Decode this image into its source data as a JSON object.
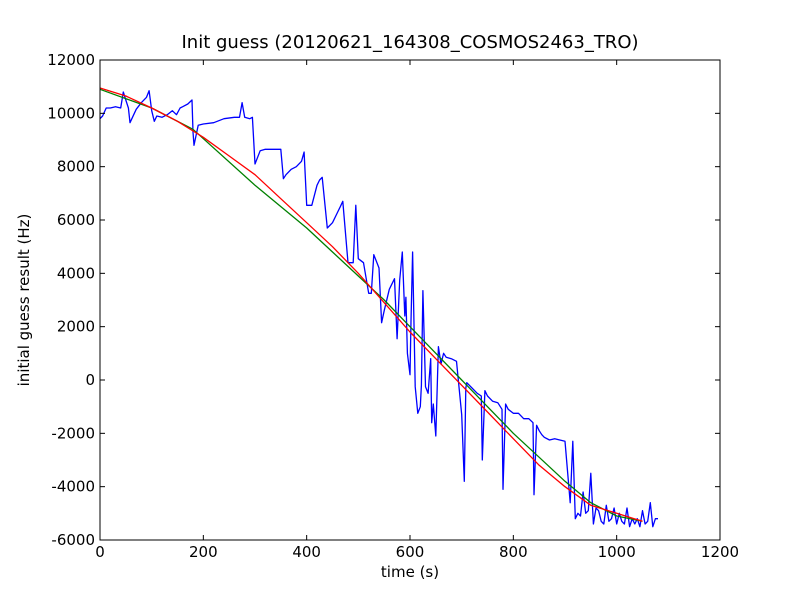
{
  "chart_data": {
    "type": "line",
    "title": "Init guess (20120621_164308_COSMOS2463_TRO)",
    "xlabel": "time (s)",
    "ylabel": "initial guess result (Hz)",
    "xlim": [
      0,
      1200
    ],
    "ylim": [
      -6000,
      12000
    ],
    "xticks": [
      0,
      200,
      400,
      600,
      800,
      1000,
      1200
    ],
    "yticks": [
      -6000,
      -4000,
      -2000,
      0,
      2000,
      4000,
      6000,
      8000,
      10000,
      12000
    ],
    "grid": false,
    "legend": "none",
    "series": [
      {
        "color": "#0000ff",
        "x": [
          0,
          5,
          12,
          20,
          30,
          40,
          45,
          50,
          55,
          58,
          70,
          80,
          90,
          95,
          100,
          105,
          110,
          120,
          130,
          140,
          148,
          155,
          160,
          170,
          178,
          180,
          182,
          190,
          200,
          220,
          240,
          260,
          270,
          275,
          280,
          290,
          295,
          300,
          310,
          320,
          330,
          340,
          350,
          355,
          360,
          370,
          380,
          390,
          395,
          400,
          410,
          420,
          425,
          430,
          440,
          450,
          460,
          465,
          470,
          480,
          490,
          495,
          500,
          510,
          520,
          525,
          530,
          540,
          545,
          550,
          560,
          570,
          575,
          580,
          585,
          590,
          592,
          595,
          600,
          602,
          605,
          610,
          615,
          620,
          622,
          625,
          630,
          635,
          640,
          642,
          645,
          650,
          655,
          660,
          665,
          670,
          680,
          690,
          700,
          705,
          708,
          710,
          720,
          730,
          738,
          740,
          745,
          750,
          760,
          770,
          778,
          780,
          785,
          790,
          800,
          810,
          820,
          830,
          838,
          840,
          845,
          850,
          855,
          860,
          870,
          880,
          890,
          900,
          910,
          915,
          920,
          925,
          930,
          935,
          940,
          945,
          950,
          955,
          960,
          965,
          970,
          975,
          980,
          985,
          990,
          995,
          1000,
          1005,
          1010,
          1015,
          1020,
          1025,
          1030,
          1035,
          1040,
          1045,
          1050,
          1055,
          1060,
          1065,
          1070,
          1075,
          1080
        ],
        "y": [
          9800,
          9900,
          10200,
          10200,
          10250,
          10200,
          10800,
          10500,
          10200,
          9650,
          10150,
          10400,
          10600,
          10850,
          10100,
          9700,
          9900,
          9850,
          9950,
          10100,
          9950,
          10200,
          10250,
          10350,
          10500,
          9300,
          8800,
          9550,
          9600,
          9650,
          9800,
          9850,
          9850,
          10400,
          9850,
          9800,
          9850,
          8100,
          8600,
          8650,
          8650,
          8650,
          8650,
          7550,
          7700,
          7900,
          8000,
          8200,
          8550,
          6550,
          6550,
          7300,
          7500,
          7600,
          5700,
          5900,
          6300,
          6500,
          6700,
          4400,
          4400,
          6550,
          4550,
          4400,
          3250,
          3250,
          4700,
          4200,
          2150,
          2600,
          3400,
          3800,
          1550,
          3750,
          4800,
          2400,
          3100,
          1000,
          200,
          2200,
          4800,
          -250,
          -1250,
          -1000,
          -200,
          3350,
          -250,
          -500,
          800,
          -1600,
          -900,
          -2100,
          1250,
          600,
          1000,
          850,
          800,
          700,
          -1300,
          -3800,
          -300,
          -100,
          -300,
          -500,
          -600,
          -3000,
          -400,
          -600,
          -800,
          -850,
          -1100,
          -4100,
          -900,
          -1100,
          -1250,
          -1250,
          -1450,
          -1450,
          -1600,
          -4300,
          -1700,
          -1900,
          -2050,
          -2150,
          -2250,
          -2200,
          -2250,
          -2300,
          -4600,
          -2300,
          -5200,
          -5000,
          -5100,
          -4200,
          -5000,
          -4900,
          -3500,
          -5400,
          -4800,
          -4900,
          -5300,
          -5400,
          -4700,
          -5300,
          -5200,
          -4800,
          -5400,
          -5000,
          -5300,
          -5400,
          -4800,
          -5500,
          -5200,
          -5400,
          -5200,
          -5500,
          -4900,
          -5400,
          -5300,
          -4600,
          -5500,
          -5200,
          -5200
        ]
      },
      {
        "color": "#008000",
        "x": [
          0,
          100,
          180,
          300,
          400,
          450,
          500,
          550,
          600,
          650,
          700,
          750,
          800,
          850,
          900,
          950,
          1000,
          1050
        ],
        "y": [
          10900,
          10200,
          9400,
          7300,
          5700,
          4800,
          3900,
          3000,
          2000,
          1000,
          0,
          -1000,
          -2000,
          -2900,
          -3800,
          -4600,
          -5100,
          -5300
        ]
      },
      {
        "color": "#ff0000",
        "x": [
          0,
          50,
          100,
          150,
          200,
          250,
          300,
          350,
          400,
          450,
          500,
          550,
          600,
          650,
          700,
          750,
          800,
          850,
          900,
          950,
          1000,
          1050
        ],
        "y": [
          10950,
          10650,
          10200,
          9700,
          9100,
          8400,
          7700,
          6800,
          5900,
          5000,
          4000,
          2900,
          1800,
          800,
          -200,
          -1200,
          -2200,
          -3200,
          -4000,
          -4700,
          -5000,
          -5300
        ]
      }
    ]
  }
}
